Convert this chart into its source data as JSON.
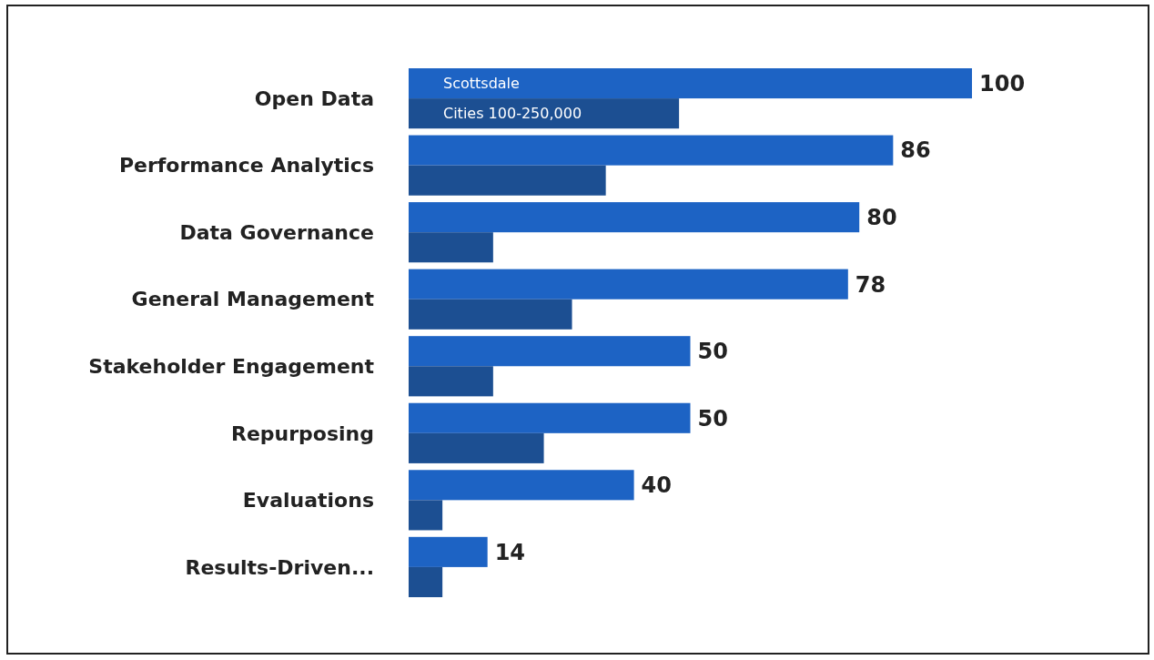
{
  "chart_data": {
    "type": "bar",
    "orientation": "horizontal",
    "categories": [
      "Open Data",
      "Performance Analytics",
      "Data Governance",
      "General Management",
      "Stakeholder Engagement",
      "Repurposing",
      "Evaluations",
      "Results-Driven..."
    ],
    "series": [
      {
        "name": "Scottsdale",
        "color": "#1d63c4",
        "values": [
          100,
          86,
          80,
          78,
          50,
          50,
          40,
          14
        ],
        "value_labels": [
          "100",
          "86",
          "80",
          "78",
          "50",
          "50",
          "40",
          "14"
        ]
      },
      {
        "name": "Cities 100-250,000",
        "color": "#1c4f92",
        "values": [
          48,
          35,
          15,
          29,
          15,
          24,
          6,
          6
        ]
      }
    ]
  }
}
